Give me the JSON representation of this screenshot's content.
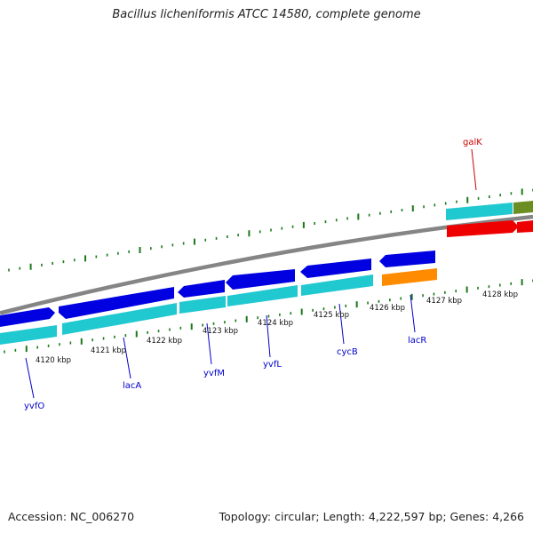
{
  "title": "Bacillus licheniformis ATCC 14580, complete genome",
  "footer": {
    "accession": "Accession: NC_006270",
    "topology": "Topology: circular; Length: 4,222,597 bp; Genes: 4,266"
  },
  "colors": {
    "backbone": "#858585",
    "forward_cds": "#0000e0",
    "reverse_cds": "#20c8d0",
    "rna_red": "#ee0000",
    "orange": "#ff8c00",
    "olive": "#6b8e23",
    "tick": "#1a7a1a",
    "gene_label_blue": "#0000cc",
    "gene_label_red": "#cc0000"
  },
  "kbp_labels": [
    "4120 kbp",
    "4121 kbp",
    "4122 kbp",
    "4123 kbp",
    "4124 kbp",
    "4125 kbp",
    "4126 kbp",
    "4127 kbp",
    "4128 kbp"
  ],
  "gene_labels": [
    "yvfO",
    "lacA",
    "yvfM",
    "yvfL",
    "cycB",
    "lacR",
    "galK"
  ]
}
